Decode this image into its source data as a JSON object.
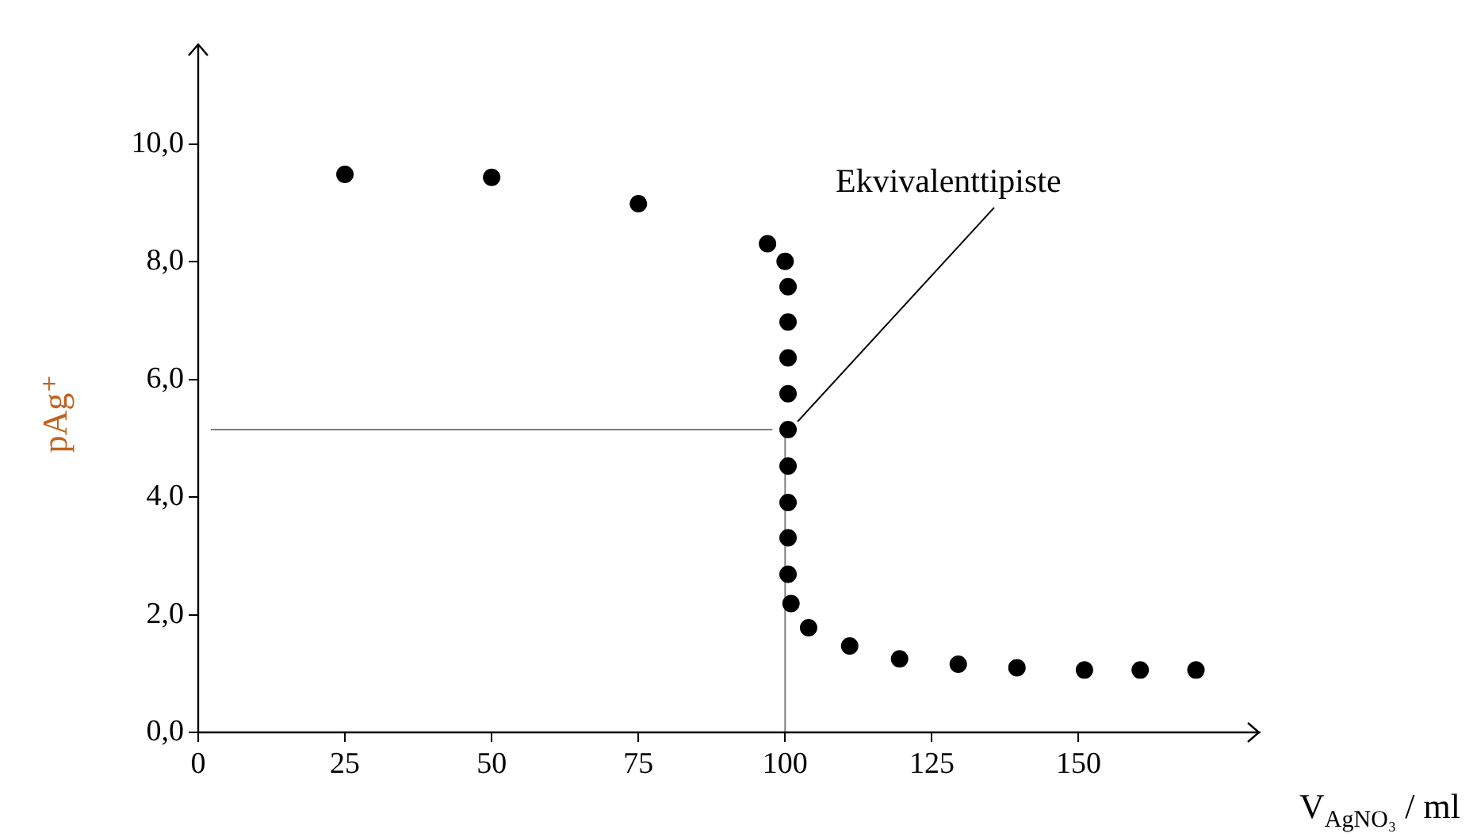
{
  "chart_data": {
    "type": "scatter",
    "xlabel": "V$_{AgNO₃}$ / ml",
    "ylabel": "pAg⁺",
    "marker": "circle",
    "grid": false,
    "legend": false,
    "xlim": [
      0,
      181
    ],
    "xticks": [
      0,
      25,
      50,
      75,
      100,
      125,
      150
    ],
    "ylim": [
      0,
      11.7
    ],
    "yticks": [
      {
        "value": 0,
        "label": "0,0"
      },
      {
        "value": 2,
        "label": "2,0"
      },
      {
        "value": 4,
        "label": "4,0"
      },
      {
        "value": 6,
        "label": "6,0"
      },
      {
        "value": 8,
        "label": "8,0"
      },
      {
        "value": 10,
        "label": "10,0"
      }
    ],
    "series": [
      {
        "color": "#000000",
        "x": [
          25,
          50,
          75,
          97,
          100,
          100.5,
          100.5,
          100.5,
          100.5,
          100.5,
          100.5,
          100.5,
          100.5,
          100.5,
          101,
          104,
          111,
          119.5,
          129.5,
          139.5,
          151,
          160.5,
          170
        ],
        "values": [
          9.49,
          9.44,
          8.99,
          8.31,
          8.01,
          7.58,
          6.98,
          6.37,
          5.76,
          5.15,
          4.53,
          3.91,
          3.31,
          2.69,
          2.19,
          1.78,
          1.47,
          1.25,
          1.16,
          1.1,
          1.06,
          1.06,
          1.06
        ]
      }
    ],
    "ref_lines": [
      {
        "axis": "y",
        "value": 5.15,
        "color": "#808080"
      },
      {
        "axis": "x",
        "value": 100,
        "color": "#808080"
      }
    ],
    "annotations": [
      {
        "text": "Ekvivalenttipiste",
        "x": 100.5,
        "y": 5.15
      }
    ]
  }
}
